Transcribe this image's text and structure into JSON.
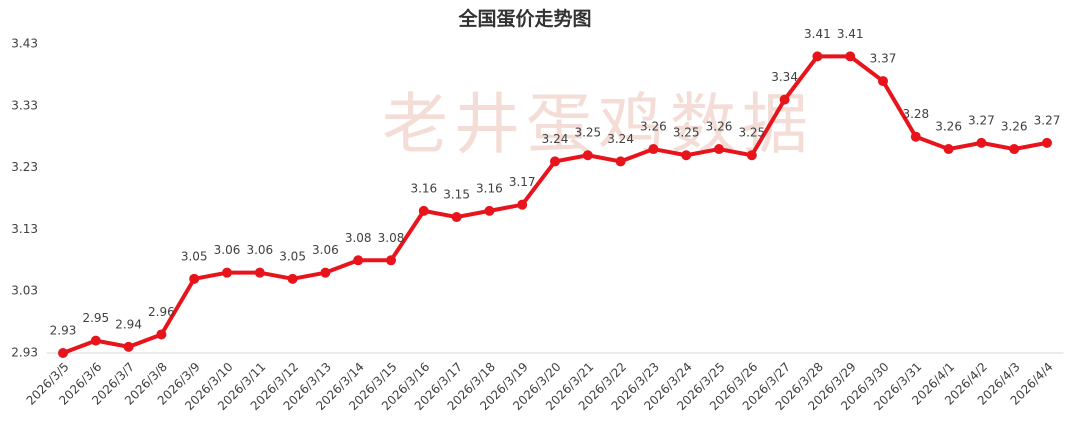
{
  "chart_data": {
    "type": "line",
    "title": "全国蛋价走势图",
    "watermark": "老井蛋鸡数据",
    "categories": [
      "2026/3/5",
      "2026/3/6",
      "2026/3/7",
      "2026/3/8",
      "2026/3/9",
      "2026/3/10",
      "2026/3/11",
      "2026/3/12",
      "2026/3/13",
      "2026/3/14",
      "2026/3/15",
      "2026/3/16",
      "2026/3/17",
      "2026/3/18",
      "2026/3/19",
      "2026/3/20",
      "2026/3/21",
      "2026/3/22",
      "2026/3/23",
      "2026/3/24",
      "2026/3/25",
      "2026/3/26",
      "2026/3/27",
      "2026/3/28",
      "2026/3/29",
      "2026/3/30",
      "2026/3/31",
      "2026/4/1",
      "2026/4/2",
      "2026/4/3",
      "2026/4/4"
    ],
    "values": [
      2.93,
      2.95,
      2.94,
      2.96,
      3.05,
      3.06,
      3.06,
      3.05,
      3.06,
      3.08,
      3.08,
      3.16,
      3.15,
      3.16,
      3.17,
      3.24,
      3.25,
      3.24,
      3.26,
      3.25,
      3.26,
      3.25,
      3.34,
      3.41,
      3.41,
      3.37,
      3.28,
      3.26,
      3.27,
      3.26,
      3.27
    ],
    "color": "#e8141c",
    "ylim": [
      2.93,
      3.43
    ],
    "yticks": [
      2.93,
      3.03,
      3.13,
      3.23,
      3.33,
      3.43
    ],
    "grid": false
  }
}
